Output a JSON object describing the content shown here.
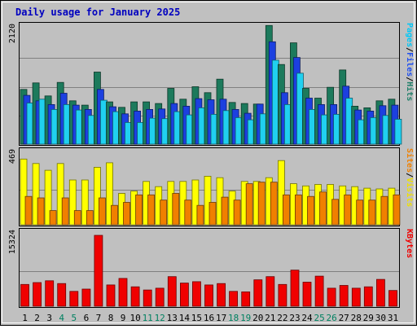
{
  "chart_data": {
    "type": "bar",
    "title": "Daily usage for January 2025",
    "categories": [
      "1",
      "2",
      "3",
      "4",
      "5",
      "6",
      "7",
      "8",
      "9",
      "10",
      "11",
      "12",
      "13",
      "14",
      "15",
      "16",
      "17",
      "18",
      "19",
      "20",
      "21",
      "22",
      "23",
      "24",
      "25",
      "26",
      "27",
      "28",
      "29",
      "30",
      "31"
    ],
    "weekend_days": [
      "4",
      "5",
      "11",
      "12",
      "18",
      "19",
      "25",
      "26"
    ],
    "panels": [
      {
        "id": "top",
        "ymax": 2120,
        "ymax_label": "2120",
        "axis_labels": [
          {
            "text": "Pages",
            "color": "#00C8F8"
          },
          {
            "text": "/",
            "color": "#000000"
          },
          {
            "text": "Files",
            "color": "#2050F0"
          },
          {
            "text": "/",
            "color": "#000000"
          },
          {
            "text": "Hits",
            "color": "#20806A"
          }
        ],
        "series": [
          {
            "name": "Hits",
            "color": "#1C7A5C",
            "values": [
              1010,
              1130,
              890,
              1140,
              800,
              720,
              1330,
              780,
              680,
              780,
              780,
              750,
              1030,
              830,
              1060,
              950,
              1200,
              770,
              750,
              740,
              2190,
              1470,
              1870,
              1030,
              850,
              1050,
              1370,
              700,
              670,
              800,
              830
            ]
          },
          {
            "name": "Files",
            "color": "#1C40E0",
            "values": [
              900,
              800,
              730,
              940,
              720,
              640,
              1010,
              690,
              560,
              610,
              640,
              650,
              750,
              700,
              840,
              820,
              830,
              640,
              570,
              740,
              1890,
              950,
              1600,
              850,
              730,
              730,
              1070,
              630,
              610,
              710,
              720
            ]
          },
          {
            "name": "Pages",
            "color": "#20D0F0",
            "values": [
              760,
              830,
              640,
              730,
              630,
              530,
              810,
              600,
              400,
              400,
              480,
              470,
              600,
              540,
              670,
              550,
              620,
              490,
              450,
              560,
              1550,
              730,
              1310,
              640,
              540,
              550,
              850,
              450,
              490,
              530,
              460
            ]
          }
        ]
      },
      {
        "id": "middle",
        "ymax": 469,
        "ymax_label": "469",
        "axis_labels": [
          {
            "text": "Sites",
            "color": "#F08000"
          },
          {
            "text": "/",
            "color": "#000000"
          },
          {
            "text": "Visits",
            "color": "#F0E000"
          }
        ],
        "series": [
          {
            "name": "Visits",
            "color": "#FFFF00",
            "values": [
              440,
              410,
              365,
              410,
              300,
              300,
              385,
              415,
              210,
              225,
              290,
              255,
              290,
              290,
              300,
              325,
              315,
              225,
              290,
              290,
              315,
              430,
              275,
              260,
              270,
              270,
              260,
              255,
              245,
              240,
              245
            ]
          },
          {
            "name": "Sites",
            "color": "#F08000",
            "values": [
              190,
              180,
              95,
              180,
              95,
              95,
              180,
              130,
              150,
              200,
              200,
              165,
              210,
              165,
              130,
              150,
              185,
              165,
              275,
              285,
              285,
              200,
              200,
              190,
              220,
              170,
              200,
              165,
              165,
              190,
              200
            ]
          }
        ]
      },
      {
        "id": "bottom",
        "ymax": 15324,
        "ymax_label": "15324",
        "axis_labels": [
          {
            "text": "KBytes",
            "color": "#F00000"
          }
        ],
        "series": [
          {
            "name": "KBytes",
            "color": "#F00000",
            "values": [
              4700,
              5100,
              5500,
              4900,
              3200,
              3700,
              15324,
              4600,
              6000,
              4200,
              3500,
              3900,
              6400,
              5000,
              5300,
              4600,
              4900,
              3200,
              3100,
              5700,
              6400,
              4700,
              7800,
              5200,
              6500,
              3900,
              4500,
              3900,
              4200,
              5800,
              3400
            ]
          }
        ]
      }
    ]
  }
}
